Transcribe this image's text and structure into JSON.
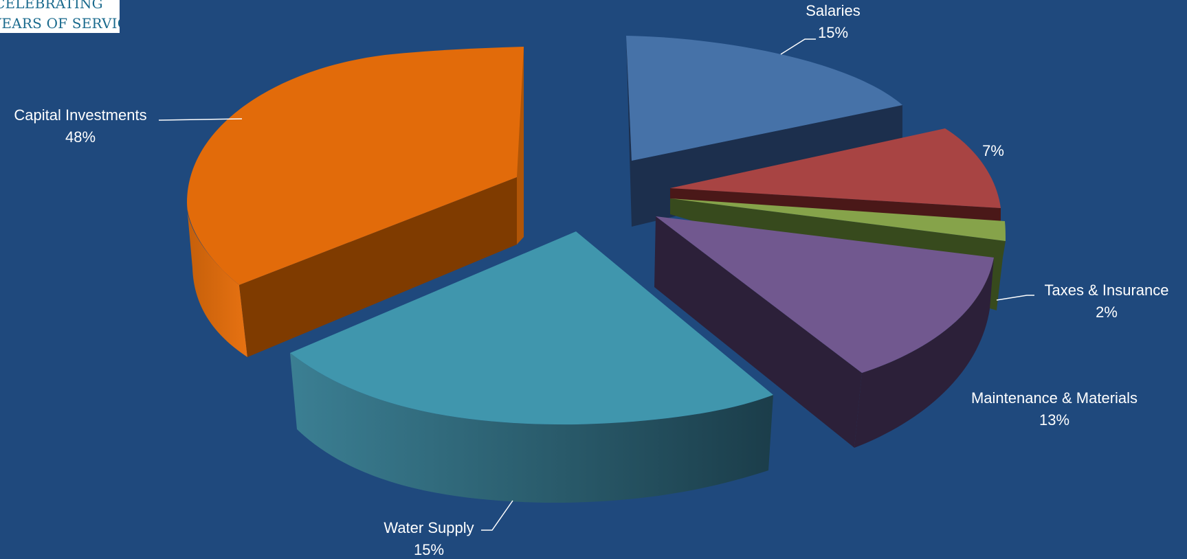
{
  "logo": {
    "line1": "CELEBRATING",
    "line2": "YEARS OF SERVICE"
  },
  "chart_data": {
    "type": "pie",
    "style": "3d-exploded",
    "background": "#1f497d",
    "title": "",
    "slices": [
      {
        "name": "Salaries",
        "value": 15,
        "label": "15%",
        "color": "#4672a8"
      },
      {
        "name": "",
        "value": 7,
        "label": "7%",
        "color": "#a84443"
      },
      {
        "name": "Taxes & Insurance",
        "value": 2,
        "label": "2%",
        "color": "#86a34a"
      },
      {
        "name": "Maintenance & Materials",
        "value": 13,
        "label": "13%",
        "color": "#71588f"
      },
      {
        "name": "Water Supply",
        "value": 15,
        "label": "15%",
        "color": "#4096ad"
      },
      {
        "name": "Capital Investments",
        "value": 48,
        "label": "48%",
        "color": "#e26b0a"
      }
    ]
  }
}
